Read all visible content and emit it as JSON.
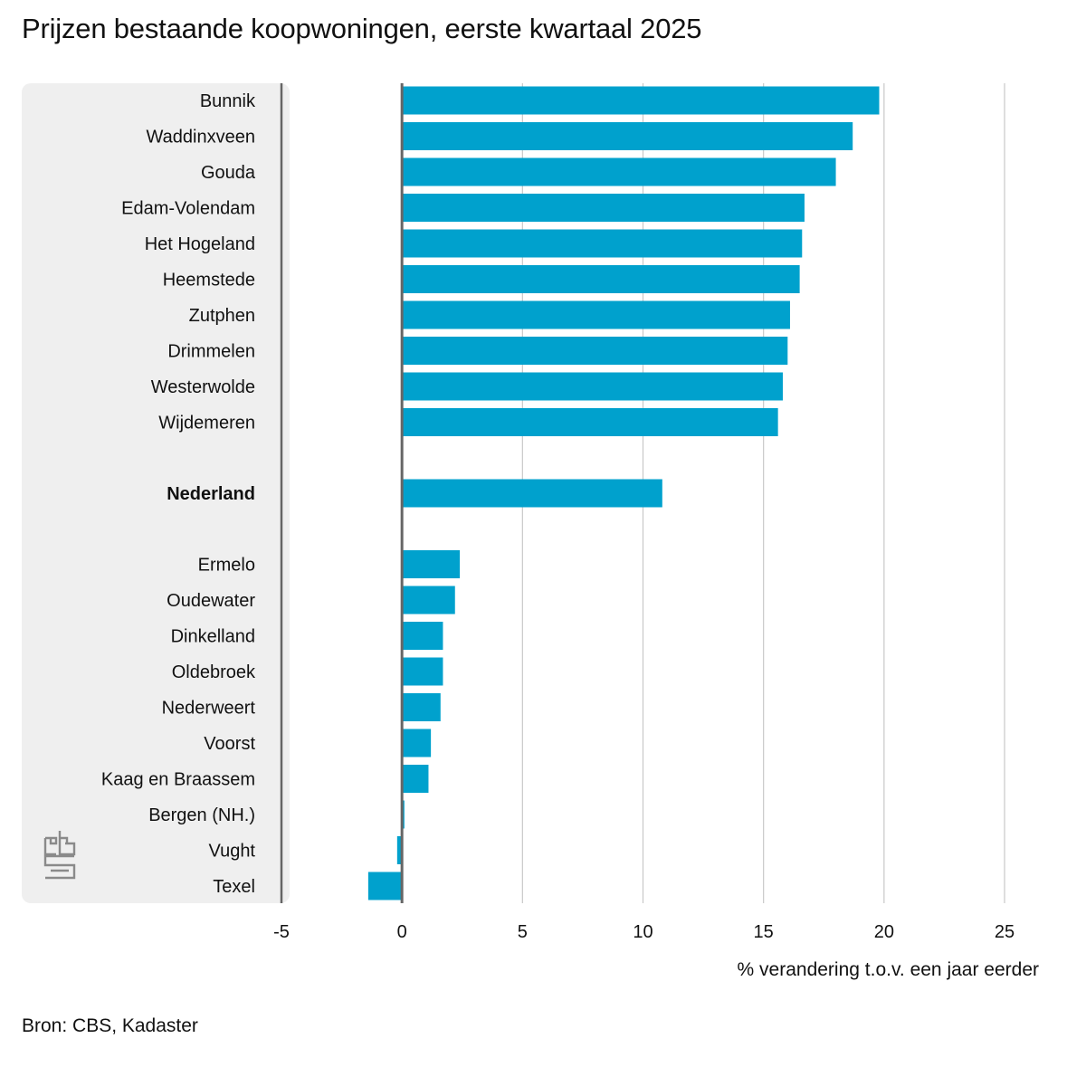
{
  "header": {
    "title": "Prijzen bestaande koopwoningen, eerste kwartaal 2025"
  },
  "footer": {
    "source": "Bron: CBS, Kadaster"
  },
  "logo": {
    "icon": "cbs-logo-icon"
  },
  "colors": {
    "bar": "#00a1cd",
    "label_panel": "#efefef",
    "grid": "#c8c8c8",
    "axis": "#666666"
  },
  "chart_data": {
    "type": "bar",
    "orientation": "horizontal",
    "title": "Prijzen bestaande koopwoningen, eerste kwartaal 2025",
    "xlabel": "% verandering t.o.v. een jaar eerder",
    "ylabel": "",
    "xlim": [
      -5,
      25
    ],
    "xticks": [
      "-5",
      "0",
      "5",
      "10",
      "15",
      "20",
      "25"
    ],
    "grid": true,
    "categories": [
      "Bunnik",
      "Waddinxveen",
      "Gouda",
      "Edam-Volendam",
      "Het Hogeland",
      "Heemstede",
      "Zutphen",
      "Drimmelen",
      "Westerwolde",
      "Wijdemeren",
      "Nederland",
      "Ermelo",
      "Oudewater",
      "Dinkelland",
      "Oldebroek",
      "Nederweert",
      "Voorst",
      "Kaag en Braassem",
      "Bergen (NH.)",
      "Vught",
      "Texel"
    ],
    "values": [
      19.8,
      18.7,
      18.0,
      16.7,
      16.6,
      16.5,
      16.1,
      16.0,
      15.8,
      15.6,
      10.8,
      2.4,
      2.2,
      1.7,
      1.7,
      1.6,
      1.2,
      1.1,
      0.1,
      -0.2,
      -1.4
    ],
    "highlight": "Nederland"
  }
}
